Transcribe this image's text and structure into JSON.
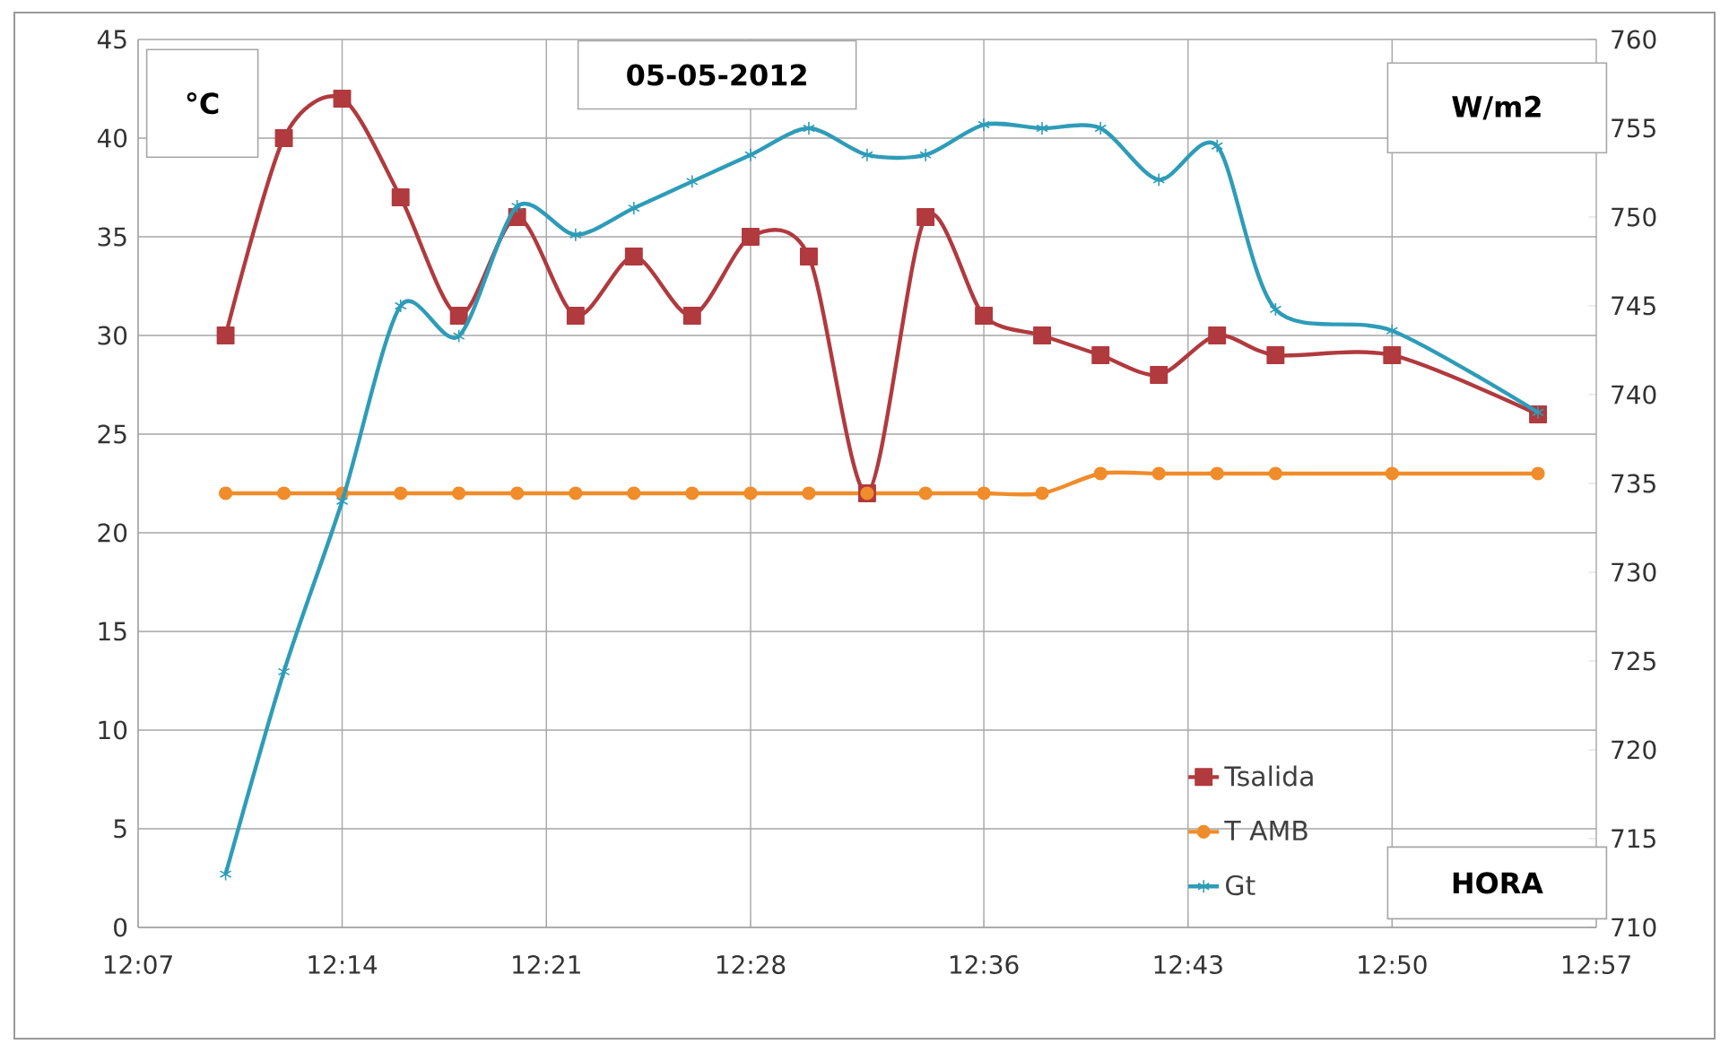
{
  "chart_data": {
    "type": "line",
    "title": "05-05-2012",
    "xlabel": "HORA",
    "ylabel": "°C",
    "y2label": "W/m2",
    "x": [
      12.1667,
      12.2,
      12.2333,
      12.2667,
      12.3,
      12.3333,
      12.3667,
      12.4,
      12.4333,
      12.4667,
      12.5,
      12.5333,
      12.5667,
      12.6,
      12.6333,
      12.6667,
      12.7,
      12.7333,
      12.7667,
      12.8333,
      12.9167
    ],
    "series": [
      {
        "name": "Tsalida",
        "color": "#b03a3e",
        "marker": "square",
        "values": [
          30,
          40,
          42,
          37,
          31,
          36,
          31,
          34,
          31,
          35,
          34,
          22,
          36,
          31,
          30,
          29,
          28,
          30,
          29,
          29,
          26
        ]
      },
      {
        "name": "T AMB",
        "color": "#f08c2a",
        "marker": "circle",
        "values": [
          22,
          22,
          22,
          22,
          22,
          22,
          22,
          22,
          22,
          22,
          22,
          22,
          22,
          22,
          22,
          23,
          23,
          23,
          23,
          23,
          23
        ]
      },
      {
        "name": "Gt",
        "color": "#2e9cb8",
        "marker": "cross",
        "axis": "y2",
        "values": [
          713,
          724.4,
          734,
          745,
          743.3,
          750.6,
          749,
          750.5,
          752,
          753.5,
          755,
          753.5,
          753.5,
          755.2,
          755,
          755,
          752.1,
          754,
          744.8,
          743.6,
          739
        ]
      }
    ],
    "xlim": [
      12.1167,
      12.95
    ],
    "xticks": [
      {
        "value": 12.1167,
        "label": "12:07"
      },
      {
        "value": 12.2333,
        "label": "12:14"
      },
      {
        "value": 12.35,
        "label": "12:21"
      },
      {
        "value": 12.4667,
        "label": "12:28"
      },
      {
        "value": 12.6,
        "label": "12:36"
      },
      {
        "value": 12.7167,
        "label": "12:43"
      },
      {
        "value": 12.8333,
        "label": "12:50"
      },
      {
        "value": 12.95,
        "label": "12:57"
      }
    ],
    "ylim": [
      0,
      45
    ],
    "yticks": [
      0,
      5,
      10,
      15,
      20,
      25,
      30,
      35,
      40,
      45
    ],
    "y2lim": [
      710,
      760
    ],
    "y2ticks": [
      710,
      715,
      720,
      725,
      730,
      735,
      740,
      745,
      750,
      755,
      760
    ],
    "grid": true,
    "legend": "bottom right",
    "line_style": "solid"
  }
}
